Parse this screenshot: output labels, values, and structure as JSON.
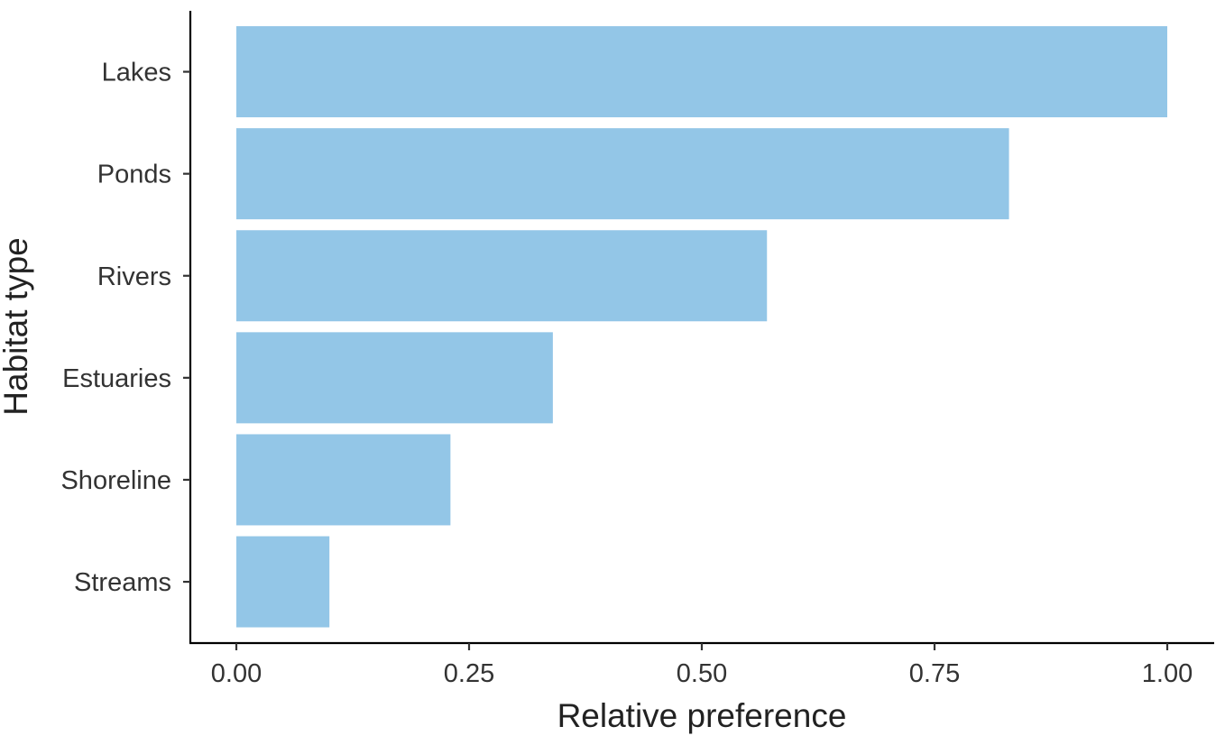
{
  "chart_data": {
    "type": "bar",
    "orientation": "horizontal",
    "categories": [
      "Lakes",
      "Ponds",
      "Rivers",
      "Estuaries",
      "Shoreline",
      "Streams"
    ],
    "values": [
      1.0,
      0.83,
      0.57,
      0.34,
      0.23,
      0.1
    ],
    "xlabel": "Relative preference",
    "ylabel": "Habitat type",
    "xlim": [
      0,
      1
    ],
    "x_ticks": [
      "0.00",
      "0.25",
      "0.50",
      "0.75",
      "1.00"
    ],
    "x_tick_values": [
      0,
      0.25,
      0.5,
      0.75,
      1.0
    ],
    "grid": false,
    "legend": "none",
    "bar_color": "#93C6E7"
  }
}
